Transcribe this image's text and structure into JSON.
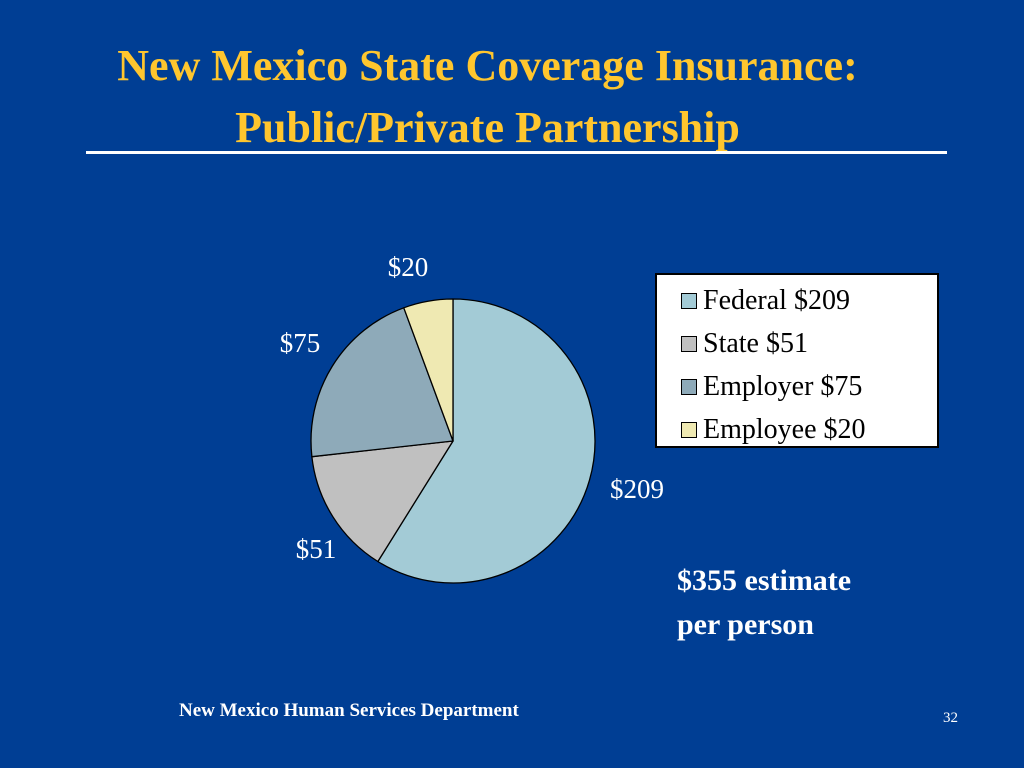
{
  "slide": {
    "title_line_1": "New Mexico State Coverage Insurance:",
    "title_line_2": "Public/Private Partnership",
    "note_line_1": "$355 estimate",
    "note_line_2": "per person",
    "footer": "New Mexico Human Services Department",
    "page_number": "32"
  },
  "colors": {
    "background": "#003e94",
    "title": "#ffc62e",
    "text": "#ffffff"
  },
  "chart_data": {
    "type": "pie",
    "title": "",
    "start_angle_deg": 0,
    "direction": "clockwise",
    "legend_position": "right",
    "slices": [
      {
        "name": "Federal",
        "value": 209,
        "label": "$209",
        "legend": "Federal $209",
        "color": "#a3cbd6"
      },
      {
        "name": "State",
        "value": 51,
        "label": "$51",
        "legend": "State $51",
        "color": "#c0c0c0"
      },
      {
        "name": "Employer",
        "value": 75,
        "label": "$75",
        "legend": "Employer $75",
        "color": "#8eaab9"
      },
      {
        "name": "Employee",
        "value": 20,
        "label": "$20",
        "legend": "Employee $20",
        "color": "#efe9b2"
      }
    ]
  }
}
